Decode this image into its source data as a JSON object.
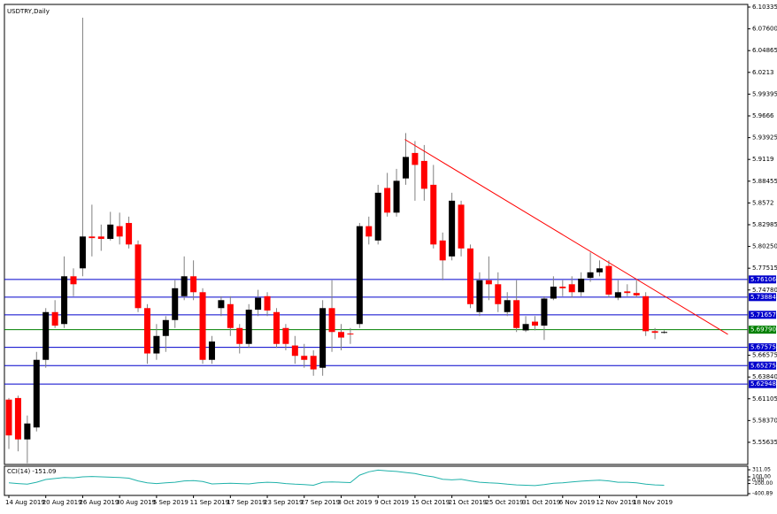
{
  "chart_data": [
    {
      "type": "candlestick",
      "title": "USDTRY,Daily",
      "categories": [
        "14 Aug 2019",
        null,
        null,
        null,
        "20 Aug 2019",
        null,
        null,
        null,
        "26 Aug 2019",
        null,
        null,
        null,
        "30 Aug 2019",
        null,
        null,
        null,
        "5 Sep 2019",
        null,
        null,
        null,
        "11 Sep 2019",
        null,
        null,
        null,
        "17 Sep 2019",
        null,
        null,
        null,
        "23 Sep 2019",
        null,
        null,
        null,
        "27 Sep 2019",
        null,
        null,
        null,
        "3 Oct 2019",
        null,
        null,
        null,
        "9 Oct 2019",
        null,
        null,
        null,
        "15 Oct 2019",
        null,
        null,
        null,
        "21 Oct 2019",
        null,
        null,
        null,
        "25 Oct 2019",
        null,
        null,
        null,
        "31 Oct 2019",
        null,
        null,
        null,
        "6 Nov 2019",
        null,
        null,
        null,
        "12 Nov 2019",
        null,
        null,
        null,
        "18 Nov 2019",
        null,
        null,
        null
      ],
      "open": [
        5.61,
        5.612,
        5.56,
        5.575,
        5.66,
        5.72,
        5.705,
        5.765,
        5.775,
        5.815,
        5.815,
        5.812,
        5.828,
        5.832,
        5.805,
        5.725,
        5.668,
        5.69,
        5.71,
        5.74,
        5.765,
        5.745,
        5.66,
        5.725,
        5.73,
        5.7,
        5.68,
        5.723,
        5.74,
        5.72,
        5.7,
        5.678,
        5.665,
        5.665,
        5.65,
        5.725,
        5.695,
        5.693,
        5.705,
        5.828,
        5.81,
        5.876,
        5.845,
        5.888,
        5.92,
        5.91,
        5.88,
        5.81,
        5.79,
        5.855,
        5.8,
        5.72,
        5.76,
        5.755,
        5.72,
        5.735,
        5.697,
        5.708,
        5.703,
        5.737,
        5.752,
        5.755,
        5.745,
        5.763,
        5.77,
        5.778,
        5.738,
        5.746,
        5.744,
        5.74,
        5.696,
        5.694
      ],
      "close": [
        5.565,
        5.56,
        5.58,
        5.66,
        5.72,
        5.703,
        5.765,
        5.755,
        5.815,
        5.813,
        5.812,
        5.83,
        5.815,
        5.805,
        5.725,
        5.668,
        5.69,
        5.71,
        5.75,
        5.765,
        5.745,
        5.66,
        5.683,
        5.735,
        5.7,
        5.68,
        5.723,
        5.738,
        5.722,
        5.68,
        5.68,
        5.665,
        5.66,
        5.648,
        5.725,
        5.695,
        5.688,
        5.692,
        5.828,
        5.815,
        5.87,
        5.845,
        5.885,
        5.915,
        5.905,
        5.875,
        5.805,
        5.785,
        5.86,
        5.8,
        5.73,
        5.76,
        5.755,
        5.73,
        5.735,
        5.7,
        5.705,
        5.703,
        5.737,
        5.752,
        5.75,
        5.745,
        5.762,
        5.77,
        5.775,
        5.742,
        5.745,
        5.744,
        5.741,
        5.696,
        5.694,
        5.695
      ],
      "high": [
        5.612,
        5.615,
        5.59,
        5.67,
        5.725,
        5.735,
        5.79,
        5.775,
        6.09,
        5.855,
        5.83,
        5.846,
        5.845,
        5.84,
        5.81,
        5.73,
        5.705,
        5.715,
        5.76,
        5.79,
        5.785,
        5.75,
        5.69,
        5.74,
        5.74,
        5.705,
        5.73,
        5.748,
        5.745,
        5.725,
        5.705,
        5.69,
        5.68,
        5.672,
        5.735,
        5.76,
        5.705,
        5.7,
        5.832,
        5.84,
        5.88,
        5.895,
        5.9,
        5.945,
        5.935,
        5.93,
        5.905,
        5.82,
        5.87,
        5.86,
        5.805,
        5.77,
        5.79,
        5.77,
        5.745,
        5.76,
        5.715,
        5.715,
        5.74,
        5.765,
        5.76,
        5.765,
        5.77,
        5.795,
        5.785,
        5.785,
        5.76,
        5.755,
        5.76,
        5.745,
        5.7,
        5.697
      ],
      "low": [
        5.548,
        5.545,
        5.53,
        5.57,
        5.65,
        5.7,
        5.7,
        5.74,
        5.765,
        5.79,
        5.797,
        5.81,
        5.805,
        5.8,
        5.72,
        5.655,
        5.66,
        5.67,
        5.7,
        5.735,
        5.735,
        5.655,
        5.655,
        5.715,
        5.69,
        5.668,
        5.675,
        5.715,
        5.715,
        5.675,
        5.672,
        5.655,
        5.65,
        5.64,
        5.64,
        5.67,
        5.672,
        5.68,
        5.7,
        5.805,
        5.805,
        5.84,
        5.84,
        5.88,
        5.86,
        5.86,
        5.8,
        5.76,
        5.785,
        5.79,
        5.725,
        5.715,
        5.735,
        5.72,
        5.715,
        5.695,
        5.695,
        5.697,
        5.685,
        5.735,
        5.74,
        5.738,
        5.74,
        5.758,
        5.765,
        5.738,
        5.735,
        5.74,
        5.738,
        5.69,
        5.686,
        5.693
      ],
      "up_color": "#000000",
      "down_color": "#ff0000",
      "ylim": [
        5.5285,
        6.1067
      ],
      "yticks": [
        6.10335,
        {
          "value": 6.076,
          "label": "6.07600"
        },
        6.04865,
        6.0213,
        5.99395,
        5.9666,
        5.93925,
        5.9119,
        5.88455,
        5.8572,
        5.82985,
        {
          "value": 5.8025,
          "label": "5.80250"
        },
        5.77515,
        {
          "value": 5.7478,
          "label": "5.74780"
        },
        5.66575,
        {
          "value": 5.6384,
          "label": "5.63840"
        },
        5.61105,
        {
          "value": 5.5837,
          "label": "5.58370"
        },
        5.55635
      ],
      "levels": [
        {
          "value": 5.76106,
          "label": "5.76106",
          "color": "#0000cc"
        },
        {
          "value": 5.73884,
          "label": "5.73884",
          "color": "#0000cc"
        },
        {
          "value": 5.71657,
          "label": "5.71657",
          "color": "#0000cc"
        },
        {
          "value": 5.6979,
          "label": "5.69790",
          "color": "#008000"
        },
        {
          "value": 5.67575,
          "label": "5.67575",
          "color": "#0000cc"
        },
        {
          "value": 5.65275,
          "label": "5.65275",
          "color": "#0000cc"
        },
        {
          "value": 5.62948,
          "label": "5.62948",
          "color": "#0000cc"
        }
      ],
      "trendline": {
        "x": [
          42.9,
          77.9
        ],
        "values": [
          5.937,
          5.692
        ],
        "color": "#ff0000"
      }
    },
    {
      "type": "line",
      "title": "CCI(14) -151.09",
      "color": "#20b2aa",
      "values": [
        -80,
        -100,
        -120,
        -60,
        20,
        50,
        80,
        70,
        100,
        110,
        100,
        90,
        80,
        60,
        -20,
        -80,
        -100,
        -80,
        -60,
        -20,
        -10,
        -40,
        -110,
        -100,
        -90,
        -100,
        -110,
        -80,
        -60,
        -70,
        -100,
        -120,
        -130,
        -150,
        -60,
        -50,
        -60,
        -70,
        150,
        250,
        300,
        280,
        260,
        230,
        200,
        140,
        100,
        30,
        10,
        30,
        -20,
        -60,
        -80,
        -90,
        -120,
        -140,
        -150,
        -160,
        -130,
        -90,
        -80,
        -50,
        -30,
        -10,
        0,
        -20,
        -60,
        -60,
        -80,
        -120,
        -140,
        -151.09
      ],
      "ylim": [
        -400.89,
        311.05
      ],
      "yticks": [
        311.05,
        {
          "value": 100,
          "label": "100.00"
        },
        {
          "value": 0,
          "label": "0.00"
        },
        {
          "value": -100,
          "label": "-100.00"
        },
        -400.89
      ]
    }
  ]
}
